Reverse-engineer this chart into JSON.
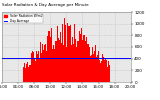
{
  "title": "Solar Radiation & Day Average per Minute",
  "bar_color": "#ff0000",
  "avg_line_color": "#0000ff",
  "background_color": "#ffffff",
  "plot_bg_color": "#e8e8e8",
  "grid_color": "#aaaaaa",
  "text_color": "#000000",
  "ylim": [
    0,
    1200
  ],
  "avg_value": 420,
  "n_bars": 144,
  "peak_value": 1100,
  "x_labels": [
    "04:00",
    "06:00",
    "08:00",
    "10:00",
    "12:00",
    "14:00",
    "16:00",
    "18:00",
    "20:00"
  ],
  "y_ticks": [
    0,
    200,
    400,
    600,
    800,
    1000,
    1200
  ],
  "legend_solar": "Solar Radiation W/m2",
  "legend_avg": "Day Average",
  "seed": 42
}
